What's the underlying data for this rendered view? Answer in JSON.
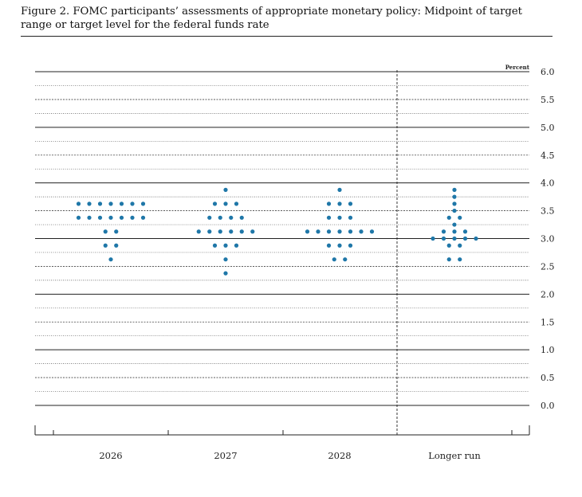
{
  "chart_data": {
    "type": "scatter",
    "title": "Figure 2. FOMC participants’ assessments of appropriate monetary policy: Midpoint of target range or target level for the federal funds rate",
    "unit_label": "Percent",
    "categories": [
      "2026",
      "2027",
      "2028",
      "Longer run"
    ],
    "ylim": [
      0,
      6
    ],
    "yticks": [
      "0.0",
      "0.5",
      "1.0",
      "1.5",
      "2.0",
      "2.5",
      "3.0",
      "3.5",
      "4.0",
      "4.5",
      "5.0",
      "5.5",
      "6.0"
    ],
    "dots": [
      {
        "category": "2026",
        "levels": [
          {
            "rate": 3.625,
            "count": 7
          },
          {
            "rate": 3.375,
            "count": 7
          },
          {
            "rate": 3.125,
            "count": 2
          },
          {
            "rate": 2.875,
            "count": 2
          },
          {
            "rate": 2.625,
            "count": 1
          }
        ]
      },
      {
        "category": "2027",
        "levels": [
          {
            "rate": 3.875,
            "count": 1
          },
          {
            "rate": 3.625,
            "count": 3
          },
          {
            "rate": 3.375,
            "count": 4
          },
          {
            "rate": 3.125,
            "count": 6
          },
          {
            "rate": 2.875,
            "count": 3
          },
          {
            "rate": 2.625,
            "count": 1
          },
          {
            "rate": 2.375,
            "count": 1
          }
        ]
      },
      {
        "category": "2028",
        "levels": [
          {
            "rate": 3.875,
            "count": 1
          },
          {
            "rate": 3.625,
            "count": 3
          },
          {
            "rate": 3.375,
            "count": 3
          },
          {
            "rate": 3.125,
            "count": 7
          },
          {
            "rate": 2.875,
            "count": 3
          },
          {
            "rate": 2.625,
            "count": 2
          }
        ]
      },
      {
        "category": "Longer run",
        "levels": [
          {
            "rate": 3.875,
            "count": 1
          },
          {
            "rate": 3.75,
            "count": 1
          },
          {
            "rate": 3.625,
            "count": 1
          },
          {
            "rate": 3.5,
            "count": 1
          },
          {
            "rate": 3.375,
            "count": 2
          },
          {
            "rate": 3.25,
            "count": 1
          },
          {
            "rate": 3.125,
            "count": 3
          },
          {
            "rate": 3.0,
            "count": 5
          },
          {
            "rate": 2.875,
            "count": 2
          },
          {
            "rate": 2.625,
            "count": 2
          }
        ]
      }
    ],
    "dot_color": "#1f77a8"
  }
}
